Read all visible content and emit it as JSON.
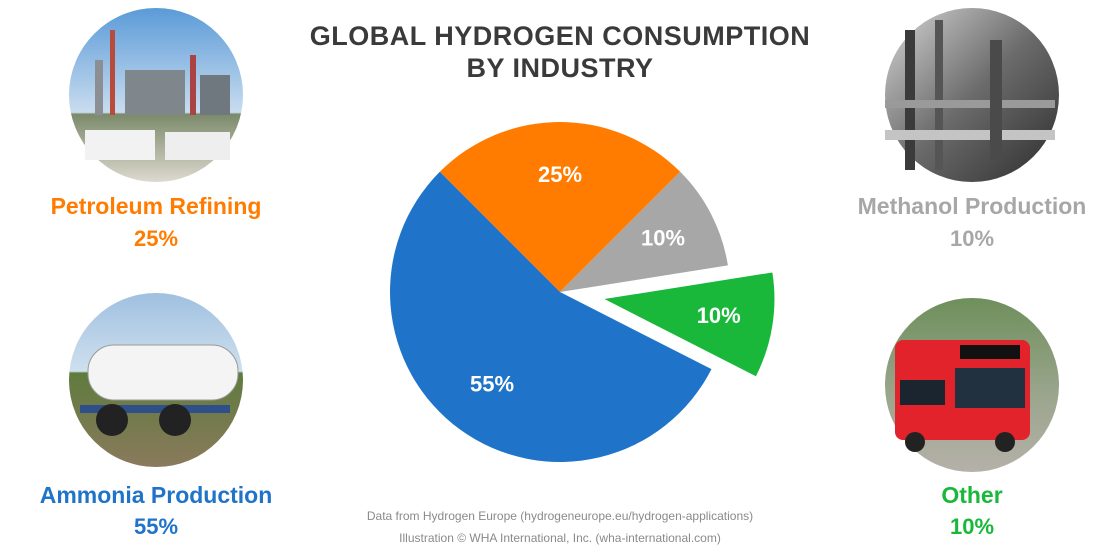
{
  "chart_data": {
    "type": "pie",
    "title": [
      "GLOBAL HYDROGEN CONSUMPTION",
      "BY INDUSTRY"
    ],
    "categories": [
      "Petroleum Refining",
      "Methanol Production",
      "Other",
      "Ammonia Production"
    ],
    "values": [
      25,
      10,
      10,
      55
    ],
    "value_labels": [
      "25%",
      "10%",
      "10%",
      "55%"
    ],
    "colors": [
      "#ff7c00",
      "#a7a7a7",
      "#19b83a",
      "#1f73c9"
    ],
    "explode": [
      false,
      false,
      true,
      false
    ],
    "source": [
      "Data from Hydrogen Europe (hydrogeneurope.eu/hydrogen-applications)",
      "Illustration © WHA International, Inc. (wha-international.com)"
    ]
  }
}
